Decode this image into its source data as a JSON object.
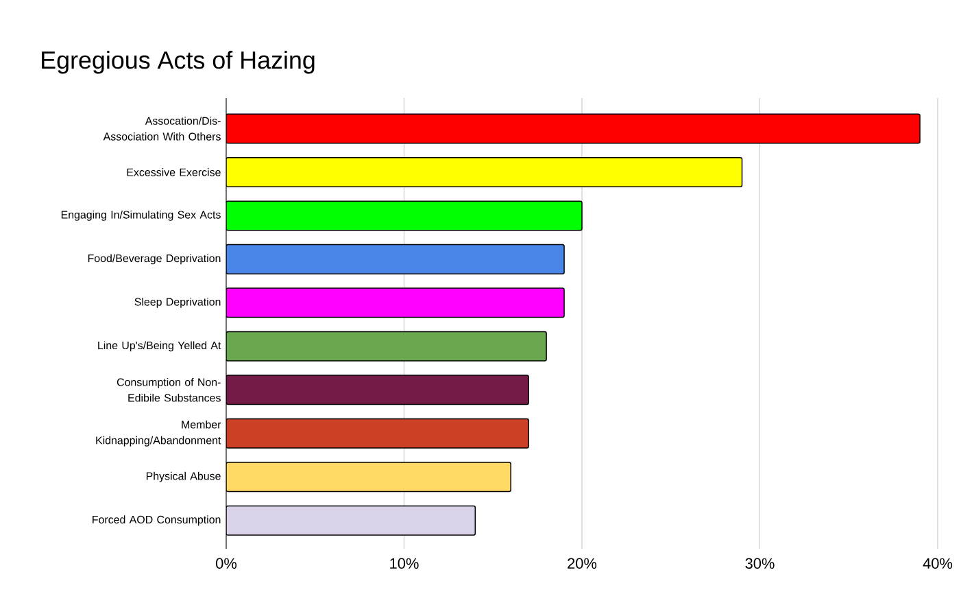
{
  "chart_data": {
    "type": "bar",
    "orientation": "horizontal",
    "title": "Egregious Acts of Hazing",
    "categories": [
      "Assocation/Dis-Association With Others",
      "Excessive Exercise",
      "Engaging In/Simulating Sex Acts",
      "Food/Beverage Deprivation",
      "Sleep Deprivation",
      "Line Up's/Being Yelled At",
      "Consumption of Non-Edibile Substances",
      "Member Kidnapping/Abandonment",
      "Physical Abuse",
      "Forced AOD Consumption"
    ],
    "values": [
      39,
      29,
      20,
      19,
      19,
      18,
      17,
      17,
      16,
      14
    ],
    "colors": [
      "#ff0000",
      "#ffff00",
      "#00ff00",
      "#4a86e8",
      "#ff00ff",
      "#6aa84f",
      "#741b47",
      "#cc4125",
      "#ffd966",
      "#d9d2e9"
    ],
    "xlim": [
      0,
      40
    ],
    "xticks": [
      {
        "value": 0,
        "label": "0%"
      },
      {
        "value": 10,
        "label": "10%"
      },
      {
        "value": 20,
        "label": "20%"
      },
      {
        "value": 30,
        "label": "30%"
      },
      {
        "value": 40,
        "label": "40%"
      }
    ],
    "grid": "x"
  }
}
